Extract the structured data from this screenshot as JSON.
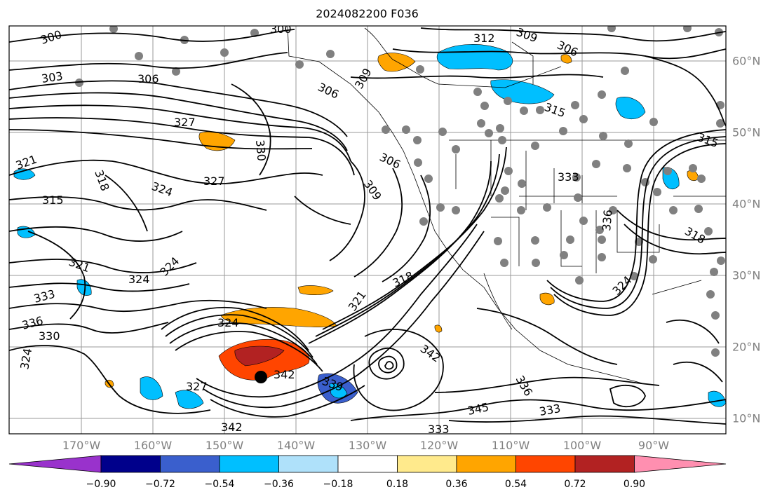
{
  "title": "2024082200 F036",
  "longitude_labels": [
    "170°W",
    "160°W",
    "150°W",
    "140°W",
    "130°W",
    "120°W",
    "110°W",
    "100°W",
    "90°W"
  ],
  "latitude_labels": [
    "60°N",
    "50°N",
    "40°N",
    "30°N",
    "20°N",
    "10°N"
  ],
  "contour_labels": [
    "300",
    "303",
    "306",
    "309",
    "312",
    "315",
    "318",
    "321",
    "324",
    "327",
    "330",
    "333",
    "336",
    "339",
    "342",
    "345"
  ],
  "colorbar": {
    "ticks": [
      "−0.90",
      "−0.72",
      "−0.54",
      "−0.36",
      "−0.18",
      "0.18",
      "0.36",
      "0.54",
      "0.72",
      "0.90"
    ],
    "colors": [
      "#9932cc",
      "#00008b",
      "#3a5fcd",
      "#00bfff",
      "#afe1fa",
      "#ffffff",
      "#ffea8c",
      "#ffa500",
      "#ff4500",
      "#b22222",
      "#ff8fb0"
    ]
  },
  "colors": {
    "contour": "#000000",
    "grid": "#808080",
    "station_dot": "#808080",
    "storm_center": "#000000"
  }
}
